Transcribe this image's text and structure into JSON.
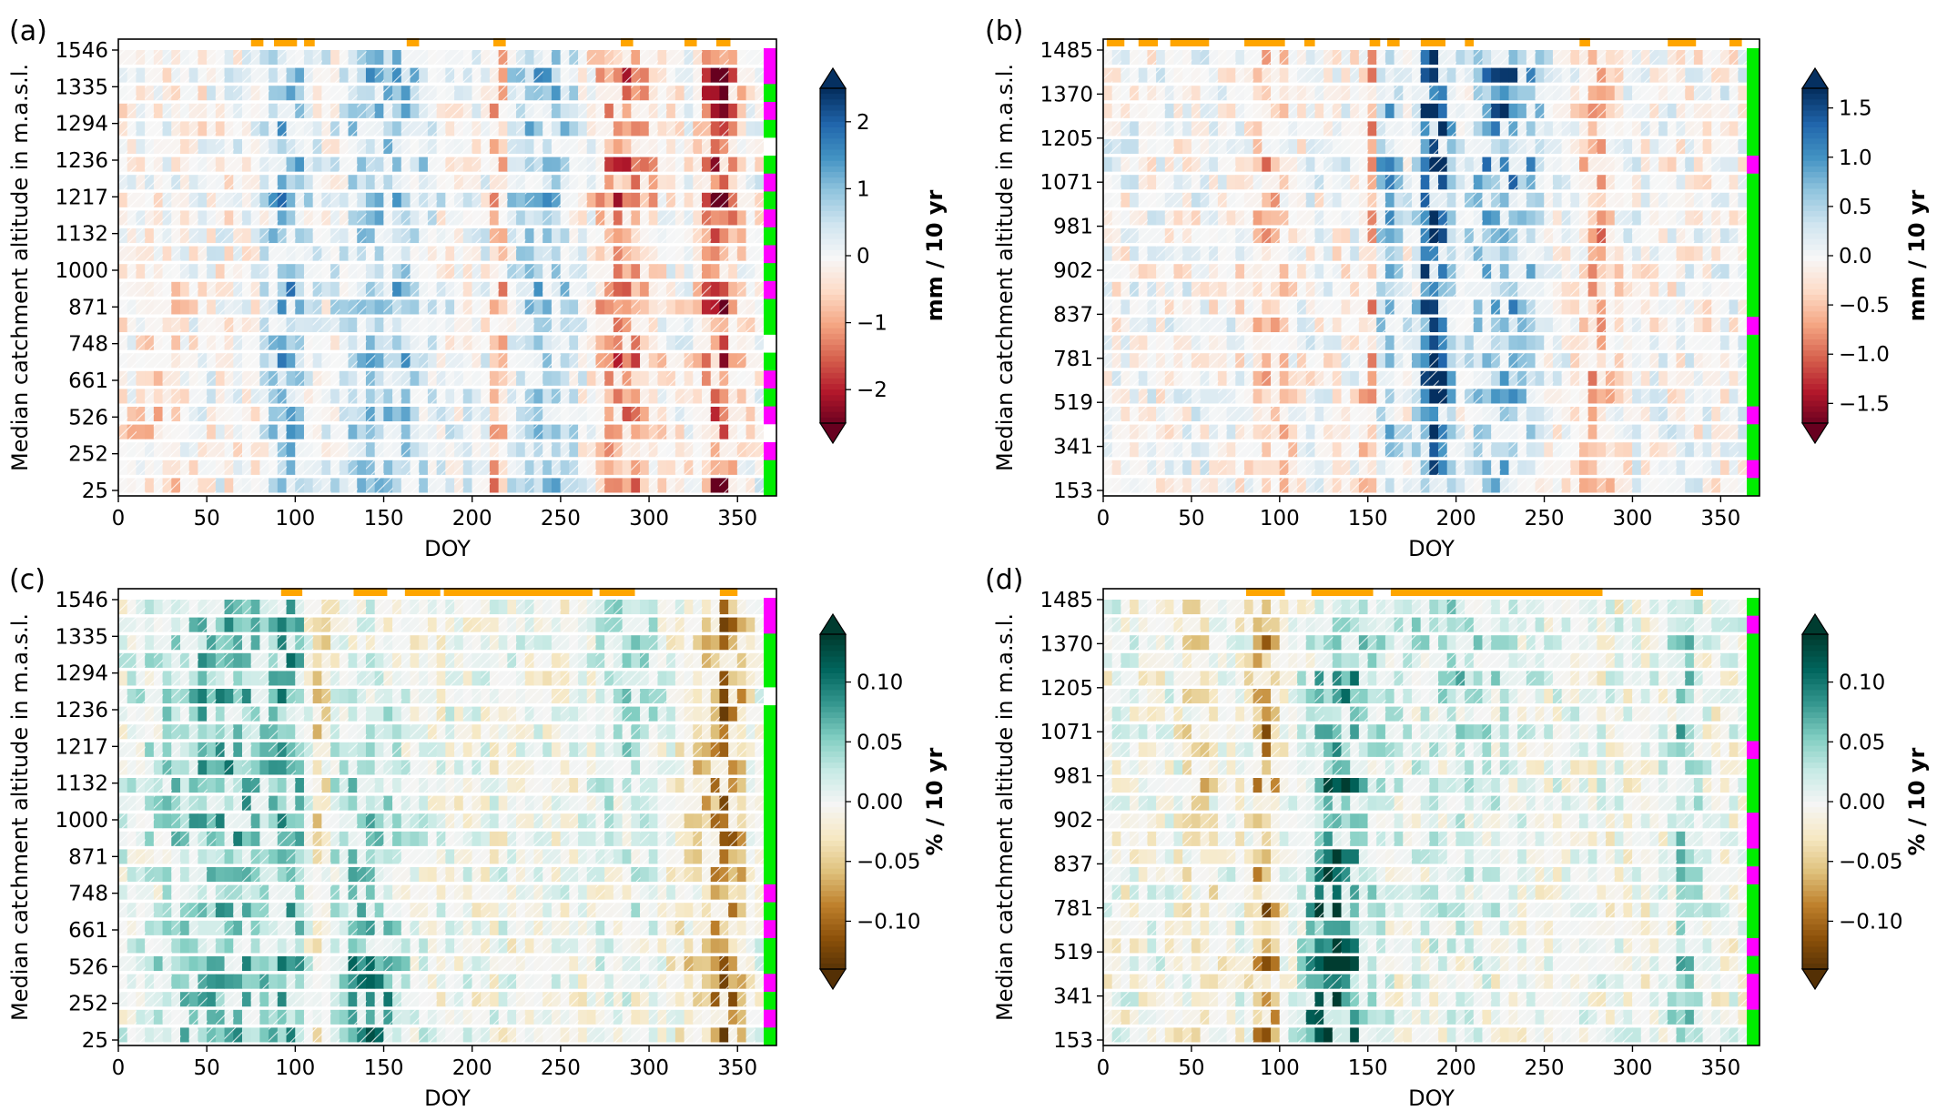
{
  "chart_data": [
    {
      "panel_label": "(a)",
      "type": "heatmap",
      "xlabel": "DOY",
      "ylabel": "Median catchment altitude in m.a.s.l.",
      "x_ticks": [
        0,
        50,
        100,
        150,
        200,
        250,
        300,
        350
      ],
      "xlim": [
        0,
        372
      ],
      "y_tick_labels": [
        "1546",
        "1335",
        "1294",
        "1236",
        "1217",
        "1132",
        "1000",
        "871",
        "748",
        "661",
        "526",
        "252",
        "25"
      ],
      "colorbar": {
        "label": "mm / 10 yr",
        "ticks": [
          2,
          1,
          0,
          -1,
          -2
        ],
        "tick_labels": [
          "2",
          "1",
          "0",
          "−1",
          "−2"
        ],
        "vmin": -2.5,
        "vmax": 2.5,
        "colormap": "RdBu",
        "colors": {
          "low": "#67001f",
          "mid": "#f7f7f7",
          "high": "#053061"
        }
      },
      "significance_marks_doy": [
        [
          75,
          82
        ],
        [
          88,
          101
        ],
        [
          105,
          111
        ],
        [
          163,
          170
        ],
        [
          212,
          219
        ],
        [
          284,
          291
        ],
        [
          320,
          327
        ],
        [
          338,
          346
        ]
      ],
      "side_strip": [
        "magenta",
        "magenta",
        "green",
        "magenta",
        "green",
        "white",
        "green",
        "magenta",
        "green",
        "magenta",
        "green",
        "magenta",
        "green",
        "magenta",
        "green",
        "green",
        "white",
        "green",
        "magenta",
        "green",
        "magenta",
        "white",
        "magenta",
        "green",
        "green"
      ],
      "z_summary": "rows (high to low altitude) x DOY columns of trend values; dominant pattern: positive (blue) around DOY 90-110 and 150-260, negative (red) around DOY 210-220, 270-300 and 330-350"
    },
    {
      "panel_label": "(b)",
      "type": "heatmap",
      "xlabel": "DOY",
      "ylabel": "Median catchment altitude in m.a.s.l.",
      "x_ticks": [
        0,
        50,
        100,
        150,
        200,
        250,
        300,
        350
      ],
      "xlim": [
        0,
        372
      ],
      "y_tick_labels": [
        "1485",
        "1370",
        "1205",
        "1071",
        "981",
        "902",
        "837",
        "781",
        "519",
        "341",
        "153"
      ],
      "colorbar": {
        "label": "mm / 10 yr",
        "ticks": [
          1.5,
          1.0,
          0.5,
          0.0,
          -0.5,
          -1.0,
          -1.5
        ],
        "tick_labels": [
          "1.5",
          "1.0",
          "0.5",
          "0.0",
          "−0.5",
          "−1.0",
          "−1.5"
        ],
        "vmin": -1.7,
        "vmax": 1.7,
        "colormap": "RdBu",
        "colors": {
          "low": "#67001f",
          "mid": "#f7f7f7",
          "high": "#053061"
        }
      },
      "significance_marks_doy": [
        [
          2,
          12
        ],
        [
          20,
          31
        ],
        [
          38,
          60
        ],
        [
          80,
          103
        ],
        [
          114,
          120
        ],
        [
          151,
          157
        ],
        [
          161,
          168
        ],
        [
          180,
          194
        ],
        [
          205,
          210
        ],
        [
          270,
          276
        ],
        [
          320,
          336
        ],
        [
          355,
          362
        ]
      ],
      "side_strip": [
        "green",
        "green",
        "green",
        "green",
        "green",
        "green",
        "magenta",
        "green",
        "green",
        "green",
        "green",
        "green",
        "green",
        "green",
        "green",
        "magenta",
        "green",
        "green",
        "green",
        "green",
        "magenta",
        "green",
        "green",
        "magenta",
        "green"
      ],
      "z_summary": "strong positive (blue) band around DOY 175-200 at most altitudes, negative (red) around DOY 150-165 and 270-290"
    },
    {
      "panel_label": "(c)",
      "type": "heatmap",
      "xlabel": "DOY",
      "ylabel": "Median catchment altitude in m.a.s.l.",
      "x_ticks": [
        0,
        50,
        100,
        150,
        200,
        250,
        300,
        350
      ],
      "xlim": [
        0,
        372
      ],
      "y_tick_labels": [
        "1546",
        "1335",
        "1294",
        "1236",
        "1217",
        "1132",
        "1000",
        "871",
        "748",
        "661",
        "526",
        "252",
        "25"
      ],
      "colorbar": {
        "label": "% / 10 yr",
        "ticks": [
          0.1,
          0.05,
          0.0,
          -0.05,
          -0.1
        ],
        "tick_labels": [
          "0.10",
          "0.05",
          "0.00",
          "−0.05",
          "−0.10"
        ],
        "vmin": -0.14,
        "vmax": 0.14,
        "colormap": "BrBG",
        "colors": {
          "low": "#543005",
          "mid": "#f5f5f5",
          "high": "#003c30"
        }
      },
      "significance_marks_doy": [
        [
          92,
          104
        ],
        [
          133,
          152
        ],
        [
          162,
          182
        ],
        [
          184,
          268
        ],
        [
          272,
          292
        ],
        [
          340,
          350
        ]
      ],
      "side_strip": [
        "magenta",
        "magenta",
        "green",
        "green",
        "green",
        "white",
        "green",
        "green",
        "green",
        "green",
        "green",
        "green",
        "green",
        "green",
        "green",
        "green",
        "magenta",
        "green",
        "magenta",
        "green",
        "green",
        "magenta",
        "green",
        "magenta",
        "green"
      ],
      "z_summary": "positive (teal) streaks at DOY 20-160 across altitudes, negative (brown) patches near DOY 85-120 and 320-355"
    },
    {
      "panel_label": "(d)",
      "type": "heatmap",
      "xlabel": "DOY",
      "ylabel": "Median catchment altitude in m.a.s.l.",
      "x_ticks": [
        0,
        50,
        100,
        150,
        200,
        250,
        300,
        350
      ],
      "xlim": [
        0,
        372
      ],
      "y_tick_labels": [
        "1485",
        "1370",
        "1205",
        "1071",
        "981",
        "902",
        "837",
        "781",
        "519",
        "341",
        "153"
      ],
      "colorbar": {
        "label": "% / 10 yr",
        "ticks": [
          0.1,
          0.05,
          0.0,
          -0.05,
          -0.1
        ],
        "tick_labels": [
          "0.10",
          "0.05",
          "0.00",
          "−0.05",
          "−0.10"
        ],
        "vmin": -0.14,
        "vmax": 0.14,
        "colormap": "BrBG",
        "colors": {
          "low": "#543005",
          "mid": "#f5f5f5",
          "high": "#003c30"
        }
      },
      "significance_marks_doy": [
        [
          81,
          103
        ],
        [
          118,
          153
        ],
        [
          163,
          283
        ],
        [
          333,
          340
        ]
      ],
      "side_strip": [
        "green",
        "magenta",
        "green",
        "green",
        "green",
        "green",
        "green",
        "green",
        "magenta",
        "green",
        "green",
        "green",
        "magenta",
        "magenta",
        "green",
        "magenta",
        "green",
        "green",
        "green",
        "magenta",
        "green",
        "magenta",
        "magenta",
        "green",
        "green"
      ],
      "z_summary": "strong positive (teal) at low altitudes DOY 115-145, negative (brown) near DOY 85-100, positive near DOY 320-345"
    }
  ]
}
